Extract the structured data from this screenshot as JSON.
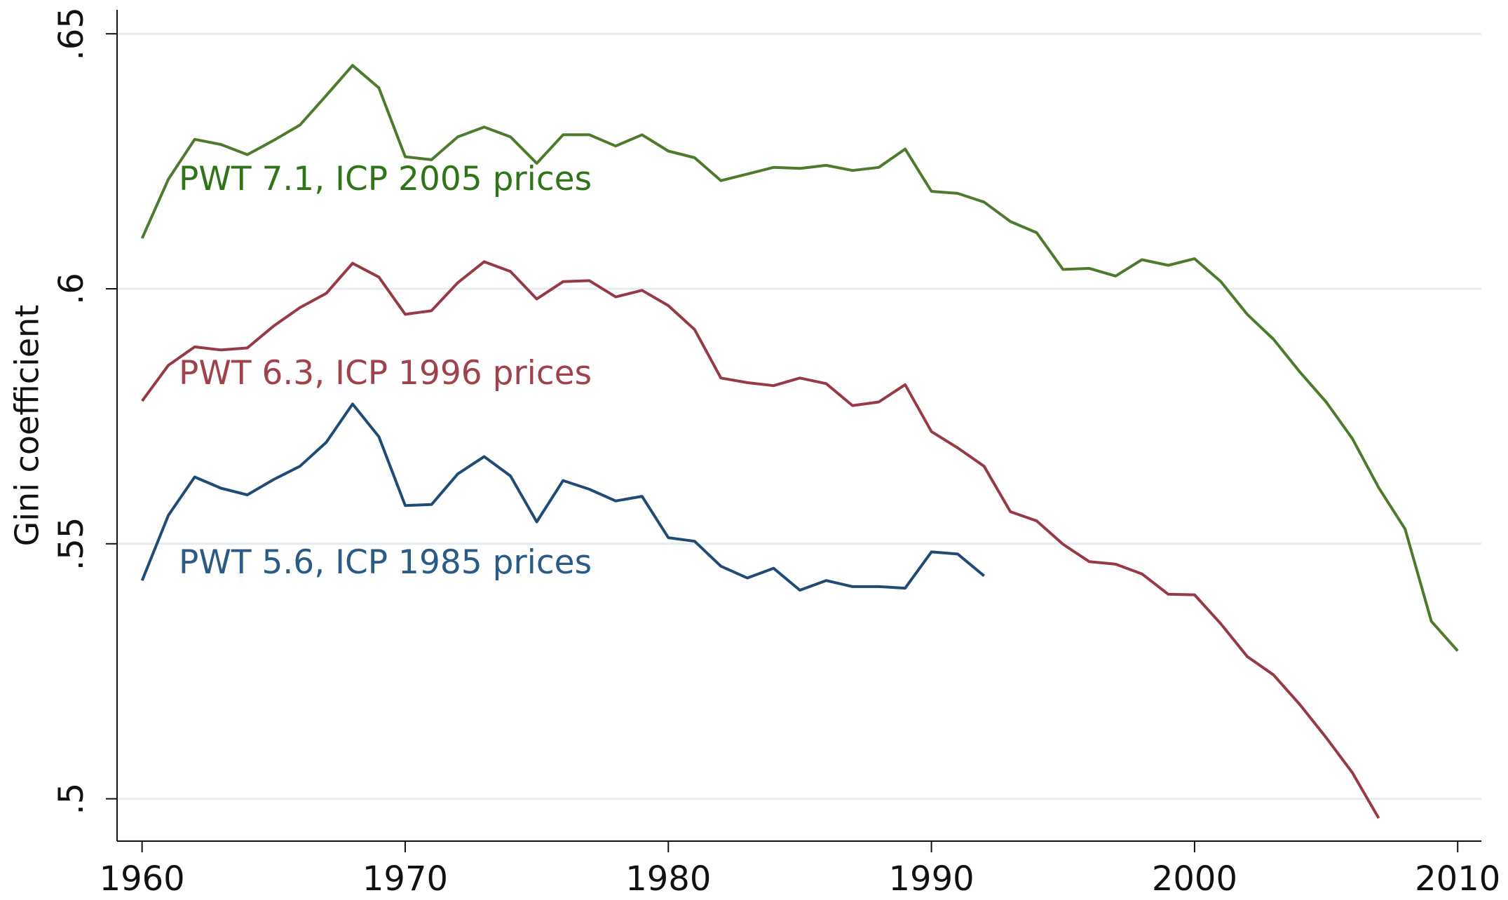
{
  "chart_data": {
    "type": "line",
    "y_label": "Gini coefficient",
    "x": [
      1960,
      1961,
      1962,
      1963,
      1964,
      1965,
      1966,
      1967,
      1968,
      1969,
      1970,
      1971,
      1972,
      1973,
      1974,
      1975,
      1976,
      1977,
      1978,
      1979,
      1980,
      1981,
      1982,
      1983,
      1984,
      1985,
      1986,
      1987,
      1988,
      1989,
      1990,
      1991,
      1992,
      1993,
      1994,
      1995,
      1996,
      1997,
      1998,
      1999,
      2000,
      2001,
      2002,
      2003,
      2004,
      2005,
      2006,
      2007,
      2008,
      2009,
      2010
    ],
    "series": [
      {
        "name": "PWT 7.1, ICP 2005 prices",
        "color": "#4e7a2e",
        "text_color": "#2f7418",
        "values": [
          0.6099,
          0.6215,
          0.6293,
          0.6283,
          0.6263,
          0.6291,
          0.6321,
          0.6379,
          0.6438,
          0.6394,
          0.6259,
          0.6253,
          0.6298,
          0.6317,
          0.6298,
          0.6246,
          0.6302,
          0.6302,
          0.628,
          0.6302,
          0.627,
          0.6257,
          0.6212,
          0.6225,
          0.6238,
          0.6236,
          0.6242,
          0.6232,
          0.6238,
          0.6274,
          0.6191,
          0.6187,
          0.617,
          0.6132,
          0.611,
          0.6038,
          0.604,
          0.6025,
          0.6057,
          0.6046,
          0.6059,
          0.6014,
          0.595,
          0.5901,
          0.5837,
          0.5778,
          0.5706,
          0.561,
          0.5529,
          0.5348,
          0.529
        ]
      },
      {
        "name": "PWT 6.3, ICP 1996 prices",
        "color": "#963a45",
        "text_color": "#a0424c",
        "values": [
          0.578,
          0.585,
          0.5886,
          0.588,
          0.5884,
          0.5927,
          0.5963,
          0.5991,
          0.605,
          0.6023,
          0.595,
          0.5957,
          0.6012,
          0.6053,
          0.6034,
          0.598,
          0.6014,
          0.6016,
          0.5984,
          0.5997,
          0.5967,
          0.592,
          0.5825,
          0.5816,
          0.581,
          0.5825,
          0.5814,
          0.5771,
          0.5778,
          0.5812,
          0.572,
          0.5688,
          0.5652,
          0.5563,
          0.5545,
          0.5499,
          0.5465,
          0.546,
          0.5441,
          0.5401,
          0.54,
          0.5343,
          0.5279,
          0.5243,
          0.5185,
          0.512,
          0.5051,
          0.4962,
          null,
          null,
          null
        ]
      },
      {
        "name": "PWT 5.6, ICP 1985 prices",
        "color": "#1f4b75",
        "text_color": "#2a5a86",
        "values": [
          0.5428,
          0.5556,
          0.5631,
          0.5609,
          0.5596,
          0.5626,
          0.5652,
          0.5699,
          0.5774,
          0.571,
          0.5575,
          0.5577,
          0.5637,
          0.5671,
          0.5633,
          0.5543,
          0.5624,
          0.5607,
          0.5584,
          0.5593,
          0.5512,
          0.5505,
          0.5456,
          0.5433,
          0.5452,
          0.5409,
          0.5428,
          0.5416,
          0.5416,
          0.5413,
          0.5484,
          0.548,
          0.5437,
          null,
          null,
          null,
          null,
          null,
          null,
          null,
          null,
          null,
          null,
          null,
          null,
          null,
          null,
          null,
          null,
          null,
          null
        ]
      }
    ],
    "xlim": [
      1959.05,
      2010.9
    ],
    "xticks": [
      1960,
      1970,
      1980,
      1990,
      2000,
      2010
    ],
    "ylim": [
      0.4917,
      0.6547
    ],
    "yticks": [
      {
        "value": 0.5,
        "label": ".5"
      },
      {
        "value": 0.55,
        "label": ".55"
      },
      {
        "value": 0.6,
        "label": ".6"
      },
      {
        "value": 0.65,
        "label": ".65"
      }
    ],
    "grid": true
  }
}
